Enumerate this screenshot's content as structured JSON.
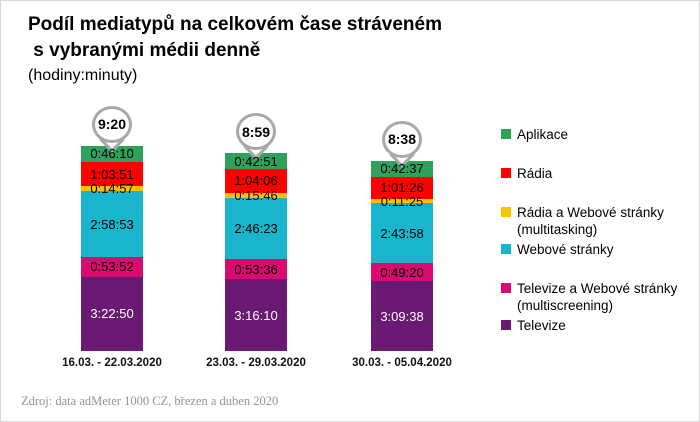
{
  "header": {
    "title_line1": "Podíl mediatypů na celkovém čase stráveném",
    "title_line2": " s vybranými médii denně",
    "subtitle": "(hodiny:minuty)"
  },
  "footer": {
    "source": "Zdroj: data adMeter 1000 CZ, březen a duben 2020"
  },
  "colors": {
    "balloon_border": "#A8A8A8",
    "background": "#FFFFFF"
  },
  "chart_data": {
    "type": "stacked-bar",
    "title": "Podíl mediatypů na celkovém čase stráveném s vybranými médii denně",
    "subtitle": "(hodiny:minuty)",
    "value_format": "h:mm:ss",
    "legend_position": "right",
    "grid": false,
    "stack_order": "top-to-bottom",
    "categories": [
      "16.03. - 22.03.2020",
      "23.03. - 29.03.2020",
      "30.03. - 05.04.2020"
    ],
    "totals": [
      "9:20",
      "8:59",
      "8:38"
    ],
    "series": [
      {
        "key": "aplikace",
        "name": "Aplikace",
        "legend_lines": [
          "Aplikace"
        ],
        "color": "#2FA15D",
        "text_color": "#000000",
        "values": [
          "0:46:10",
          "0:42:51",
          "0:42:37"
        ]
      },
      {
        "key": "radia",
        "name": "Rádia",
        "legend_lines": [
          "Rádia"
        ],
        "color": "#FF0000",
        "text_color": "#000000",
        "values": [
          "1:03:51",
          "1:04:06",
          "1:01:26"
        ]
      },
      {
        "key": "radia-web-multitasking",
        "name": "Rádia a Webové stránky (multitasking)",
        "legend_lines": [
          "Rádia a Webové stránky",
          "(multitasking)"
        ],
        "color": "#FFC000",
        "text_color": "#000000",
        "values": [
          "0:14:57",
          "0:15:46",
          "0:11:25"
        ]
      },
      {
        "key": "webove-stranky",
        "name": "Webové stránky",
        "legend_lines": [
          "Webové stránky"
        ],
        "color": "#18B5CD",
        "text_color": "#000000",
        "values": [
          "2:58:53",
          "2:46:23",
          "2:43:58"
        ]
      },
      {
        "key": "televize-web-multiscreening",
        "name": "Televize a Webové stránky (multiscreening)",
        "legend_lines": [
          "Televize a Webové stránky",
          "(multiscreening)"
        ],
        "color": "#DB0A6F",
        "text_color": "#000000",
        "values": [
          "0:53:52",
          "0:53:36",
          "0:49:20"
        ]
      },
      {
        "key": "televize",
        "name": "Televize",
        "legend_lines": [
          "Televize"
        ],
        "color": "#6A1A72",
        "text_color": "#FFFFFF",
        "values": [
          "3:22:50",
          "3:16:10",
          "3:09:38"
        ]
      }
    ]
  }
}
